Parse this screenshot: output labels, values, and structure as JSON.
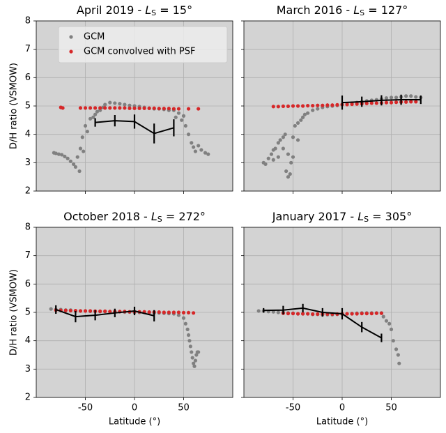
{
  "chart_data": [
    {
      "type": "scatter",
      "title": [
        "April 2019 - ",
        "L",
        "S",
        " = 15°"
      ],
      "ylabel": "D/H ratio (VSMOW)",
      "xlim": [
        -100,
        100
      ],
      "ylim": [
        2,
        8
      ],
      "xticks": [
        -50,
        0,
        50
      ],
      "yticks": [
        2,
        3,
        4,
        5,
        6,
        7,
        8
      ],
      "xtick_labels": false,
      "ytick_labels": true,
      "grid": true,
      "legend": "upper right",
      "series": [
        {
          "name": "GCM",
          "color": "#808080",
          "x": [
            -82,
            -80,
            -77,
            -74,
            -71,
            -68,
            -65,
            -62,
            -60,
            -58,
            -56,
            -55,
            -53,
            -52,
            -50,
            -48,
            -45,
            -42,
            -40,
            -38,
            -35,
            -32,
            -30,
            -25,
            -20,
            -15,
            -10,
            -5,
            0,
            5,
            10,
            15,
            20,
            25,
            30,
            35,
            40,
            42,
            45,
            48,
            50,
            52,
            55,
            58,
            60,
            62,
            65,
            68,
            72,
            75
          ],
          "values": [
            3.35,
            3.33,
            3.3,
            3.28,
            3.22,
            3.15,
            3.05,
            2.95,
            2.85,
            3.2,
            2.7,
            3.5,
            3.9,
            3.4,
            4.3,
            4.1,
            4.55,
            4.6,
            4.7,
            4.8,
            4.85,
            4.95,
            5.05,
            5.12,
            5.1,
            5.08,
            5.05,
            5.02,
            5.0,
            4.98,
            4.95,
            4.92,
            4.9,
            4.9,
            4.88,
            4.85,
            4.85,
            4.6,
            4.75,
            4.5,
            4.65,
            4.3,
            4.0,
            3.7,
            3.55,
            3.4,
            3.6,
            3.45,
            3.35,
            3.3
          ]
        },
        {
          "name": "GCM convolved with PSF",
          "color": "#d62728",
          "x": [
            -75,
            -73,
            -55,
            -50,
            -45,
            -40,
            -35,
            -30,
            -25,
            -20,
            -15,
            -10,
            -5,
            0,
            5,
            10,
            15,
            20,
            25,
            30,
            35,
            40,
            45,
            55,
            65
          ],
          "values": [
            4.95,
            4.93,
            4.93,
            4.93,
            4.93,
            4.93,
            4.93,
            4.93,
            4.93,
            4.93,
            4.93,
            4.93,
            4.92,
            4.92,
            4.92,
            4.92,
            4.92,
            4.92,
            4.91,
            4.91,
            4.91,
            4.9,
            4.9,
            4.9,
            4.9
          ]
        },
        {
          "type": "line",
          "color": "#000000",
          "x": [
            -40,
            -20,
            0,
            20,
            40
          ],
          "values": [
            4.42,
            4.48,
            4.45,
            4.03,
            4.23
          ],
          "errors": [
            0.15,
            0.2,
            0.25,
            0.35,
            0.3
          ]
        }
      ]
    },
    {
      "type": "scatter",
      "title": [
        "March 2016 - ",
        "L",
        "S",
        " = 127°"
      ],
      "xlim": [
        -100,
        100
      ],
      "ylim": [
        2,
        8
      ],
      "xticks": [
        -50,
        0,
        50
      ],
      "yticks": [
        2,
        3,
        4,
        5,
        6,
        7,
        8
      ],
      "xtick_labels": false,
      "ytick_labels": false,
      "grid": true,
      "series": [
        {
          "color": "#808080",
          "x": [
            -80,
            -78,
            -75,
            -72,
            -70,
            -68,
            -65,
            -63,
            -60,
            -58,
            -57,
            -55,
            -53,
            -52,
            -50,
            -48,
            -45,
            -42,
            -40,
            -38,
            -35,
            -30,
            -25,
            -20,
            -15,
            -10,
            -5,
            0,
            5,
            10,
            15,
            20,
            25,
            30,
            35,
            40,
            45,
            50,
            55,
            60,
            65,
            70,
            75,
            80,
            -60,
            -55,
            -50,
            -45,
            -65,
            -70
          ],
          "values": [
            3.0,
            2.95,
            3.15,
            3.3,
            3.45,
            3.5,
            3.7,
            3.8,
            3.9,
            4.0,
            2.7,
            2.5,
            2.6,
            3.0,
            3.2,
            4.3,
            4.4,
            4.5,
            4.6,
            4.7,
            4.75,
            4.85,
            4.9,
            4.95,
            4.98,
            5.0,
            5.02,
            5.05,
            5.08,
            5.1,
            5.12,
            5.15,
            5.18,
            5.2,
            5.22,
            5.25,
            5.28,
            5.3,
            5.3,
            5.32,
            5.35,
            5.35,
            5.32,
            5.3,
            3.5,
            3.3,
            3.9,
            3.8,
            3.2,
            3.1
          ]
        },
        {
          "color": "#d62728",
          "x": [
            -70,
            -65,
            -60,
            -55,
            -50,
            -45,
            -40,
            -35,
            -30,
            -25,
            -20,
            -15,
            -10,
            -5,
            0,
            5,
            10,
            15,
            20,
            25,
            30,
            35,
            40,
            45,
            50,
            55,
            60,
            65,
            70,
            75
          ],
          "values": [
            4.98,
            4.98,
            4.99,
            4.99,
            5.0,
            5.0,
            5.0,
            5.01,
            5.01,
            5.02,
            5.02,
            5.03,
            5.03,
            5.04,
            5.05,
            5.05,
            5.06,
            5.07,
            5.08,
            5.09,
            5.1,
            5.1,
            5.11,
            5.12,
            5.12,
            5.13,
            5.14,
            5.14,
            5.15,
            5.15
          ]
        },
        {
          "type": "line",
          "color": "#000000",
          "x": [
            0,
            20,
            40,
            60,
            80
          ],
          "values": [
            5.12,
            5.15,
            5.2,
            5.22,
            5.22
          ],
          "errors": [
            0.25,
            0.18,
            0.18,
            0.18,
            0.15
          ]
        }
      ]
    },
    {
      "type": "scatter",
      "title": [
        "October 2018 - ",
        "L",
        "S",
        " = 272°"
      ],
      "ylabel": "D/H ratio (VSMOW)",
      "xlabel": "Latitude (°)",
      "xlim": [
        -100,
        100
      ],
      "ylim": [
        2,
        8
      ],
      "xticks": [
        -50,
        0,
        50
      ],
      "yticks": [
        2,
        3,
        4,
        5,
        6,
        7,
        8
      ],
      "xtick_labels": true,
      "ytick_labels": true,
      "grid": true,
      "series": [
        {
          "color": "#808080",
          "x": [
            -85,
            -80,
            -75,
            -70,
            -65,
            -60,
            -55,
            -50,
            -45,
            -40,
            -35,
            -30,
            -25,
            -20,
            -15,
            -10,
            -5,
            0,
            5,
            10,
            15,
            20,
            25,
            30,
            35,
            40,
            45,
            50,
            52,
            54,
            55,
            56,
            57,
            58,
            59,
            60,
            61,
            62,
            63,
            64,
            65
          ],
          "values": [
            5.12,
            5.1,
            5.1,
            5.08,
            5.08,
            5.05,
            5.05,
            5.05,
            5.04,
            5.04,
            5.03,
            5.03,
            5.02,
            5.02,
            5.02,
            5.01,
            5.01,
            5.0,
            5.0,
            5.0,
            4.99,
            4.98,
            4.98,
            4.97,
            4.96,
            4.95,
            4.9,
            4.8,
            4.6,
            4.4,
            4.2,
            4.0,
            3.8,
            3.6,
            3.4,
            3.2,
            3.1,
            3.3,
            3.5,
            3.6,
            3.6
          ]
        },
        {
          "color": "#d62728",
          "x": [
            -80,
            -75,
            -70,
            -65,
            -60,
            -55,
            -50,
            -45,
            -40,
            -35,
            -30,
            -25,
            -20,
            -15,
            -10,
            -5,
            0,
            5,
            10,
            15,
            20,
            25,
            30,
            35,
            40,
            45,
            50,
            55,
            60
          ],
          "values": [
            5.08,
            5.07,
            5.07,
            5.06,
            5.06,
            5.05,
            5.05,
            5.05,
            5.04,
            5.04,
            5.04,
            5.03,
            5.03,
            5.03,
            5.03,
            5.02,
            5.02,
            5.02,
            5.02,
            5.01,
            5.01,
            5.01,
            5.0,
            5.0,
            5.0,
            5.0,
            4.99,
            4.99,
            4.98
          ]
        },
        {
          "type": "line",
          "color": "#000000",
          "x": [
            -80,
            -60,
            -40,
            -20,
            0,
            20
          ],
          "values": [
            5.1,
            4.85,
            4.9,
            4.98,
            5.05,
            4.88
          ],
          "errors": [
            0.15,
            0.2,
            0.18,
            0.15,
            0.15,
            0.2
          ]
        }
      ]
    },
    {
      "type": "scatter",
      "title": [
        "January 2017 - ",
        "L",
        "S",
        " = 305°"
      ],
      "xlabel": "Latitude (°)",
      "xlim": [
        -100,
        100
      ],
      "ylim": [
        2,
        8
      ],
      "xticks": [
        -50,
        0,
        50
      ],
      "yticks": [
        2,
        3,
        4,
        5,
        6,
        7,
        8
      ],
      "xtick_labels": true,
      "ytick_labels": false,
      "grid": true,
      "series": [
        {
          "color": "#808080",
          "x": [
            -85,
            -80,
            -75,
            -70,
            -65,
            -60,
            -55,
            -50,
            -45,
            -40,
            -35,
            -30,
            -25,
            -20,
            -15,
            -10,
            -5,
            0,
            5,
            10,
            15,
            20,
            25,
            30,
            35,
            40,
            42,
            45,
            48,
            50,
            52,
            55,
            57,
            58
          ],
          "values": [
            5.05,
            5.05,
            5.03,
            5.02,
            5.0,
            5.0,
            4.98,
            4.97,
            4.95,
            4.95,
            4.95,
            4.93,
            4.93,
            4.92,
            4.92,
            4.92,
            4.93,
            4.94,
            4.95,
            4.96,
            4.97,
            4.98,
            4.98,
            4.98,
            4.98,
            4.98,
            4.85,
            4.7,
            4.6,
            4.4,
            4.0,
            3.7,
            3.5,
            3.2
          ]
        },
        {
          "color": "#d62728",
          "x": [
            -60,
            -55,
            -50,
            -45,
            -40,
            -35,
            -30,
            -25,
            -20,
            -15,
            -10,
            -5,
            0,
            5,
            10,
            15,
            20,
            25,
            30,
            35,
            40
          ],
          "values": [
            4.97,
            4.96,
            4.96,
            4.95,
            4.95,
            4.95,
            4.94,
            4.94,
            4.94,
            4.94,
            4.94,
            4.94,
            4.95,
            4.95,
            4.95,
            4.95,
            4.96,
            4.96,
            4.96,
            4.97,
            4.97
          ]
        },
        {
          "type": "line",
          "color": "#000000",
          "x": [
            -80,
            -60,
            -40,
            -20,
            0,
            20,
            40
          ],
          "values": [
            5.07,
            5.08,
            5.15,
            5.0,
            4.95,
            4.48,
            4.1
          ],
          "errors": [
            0.08,
            0.15,
            0.15,
            0.15,
            0.2,
            0.18,
            0.15
          ]
        }
      ]
    }
  ]
}
